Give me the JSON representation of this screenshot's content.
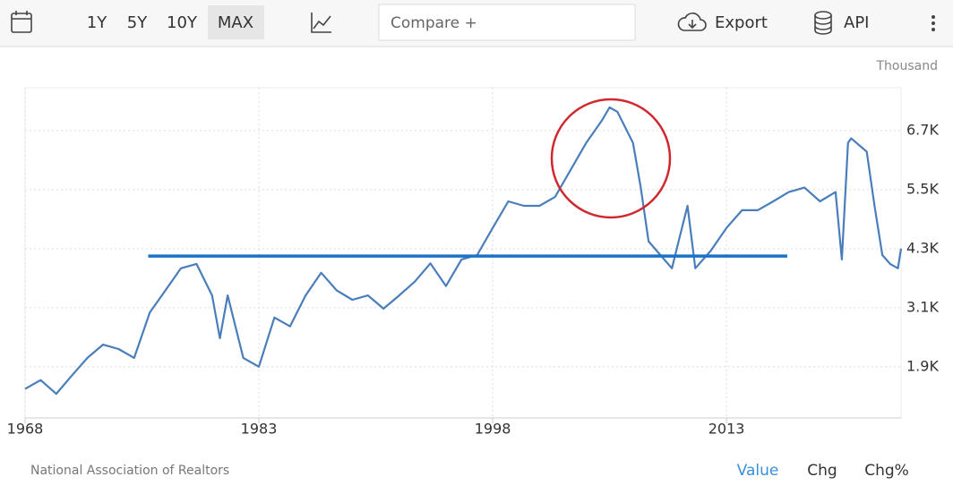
{
  "toolbar": {
    "ranges": [
      "1Y",
      "5Y",
      "10Y",
      "MAX"
    ],
    "compare": "Compare +",
    "export": "Export",
    "api": "API"
  },
  "footer": {
    "source": "National Association of Realtors",
    "tabs": [
      "Value",
      "Chg",
      "Chg%"
    ]
  },
  "chart_data": {
    "type": "line",
    "unit": "Thousand",
    "color": "#4a7ebb",
    "x": [
      1968,
      1969,
      1970,
      1971,
      1972,
      1973,
      1974,
      1975,
      1976,
      1977,
      1978,
      1979,
      1980,
      1980.5,
      1981,
      1982,
      1983,
      1984,
      1985,
      1986,
      1987,
      1988,
      1989,
      1990,
      1991,
      1992,
      1993,
      1994,
      1995,
      1996,
      1997,
      1998,
      1999,
      2000,
      2001,
      2002,
      2003,
      2004,
      2005,
      2005.5,
      2006,
      2007,
      2007.5,
      2008,
      2009,
      2009.5,
      2010,
      2010.5,
      2011,
      2012,
      2013,
      2014,
      2015,
      2016,
      2017,
      2018,
      2019,
      2020,
      2020.4,
      2020.8,
      2021,
      2022,
      2022.5,
      2023,
      2023.5,
      2024,
      2024.2
    ],
    "values": [
      1.45,
      1.63,
      1.35,
      1.72,
      2.08,
      2.35,
      2.26,
      2.08,
      3.0,
      3.45,
      3.9,
      3.99,
      3.35,
      2.48,
      3.35,
      2.08,
      1.9,
      2.9,
      2.72,
      3.35,
      3.81,
      3.45,
      3.26,
      3.35,
      3.08,
      3.35,
      3.63,
      4.0,
      3.54,
      4.08,
      4.17,
      4.72,
      5.26,
      5.17,
      5.17,
      5.35,
      5.9,
      6.45,
      6.9,
      7.17,
      7.08,
      6.45,
      5.54,
      4.45,
      4.08,
      3.9,
      4.54,
      5.17,
      3.9,
      4.26,
      4.72,
      5.08,
      5.08,
      5.26,
      5.45,
      5.54,
      5.26,
      5.45,
      4.08,
      6.45,
      6.54,
      6.27,
      5.17,
      4.17,
      3.99,
      3.9,
      4.3
    ],
    "xlim": [
      1968,
      2024.2
    ],
    "xticks": [
      1968,
      1983,
      1998,
      2013
    ],
    "ylim": [
      0.86,
      7.57
    ],
    "yticks": [
      {
        "value": 1.9,
        "label": "1.9K"
      },
      {
        "value": 3.1,
        "label": "3.1K"
      },
      {
        "value": 4.3,
        "label": "4.3K"
      },
      {
        "value": 5.5,
        "label": "5.5K"
      },
      {
        "value": 6.7,
        "label": "6.7K"
      }
    ],
    "grid": true,
    "reference_line": {
      "y": 4.15,
      "x": [
        1975.9,
        2016.9
      ],
      "color": "#1a73c8"
    }
  }
}
